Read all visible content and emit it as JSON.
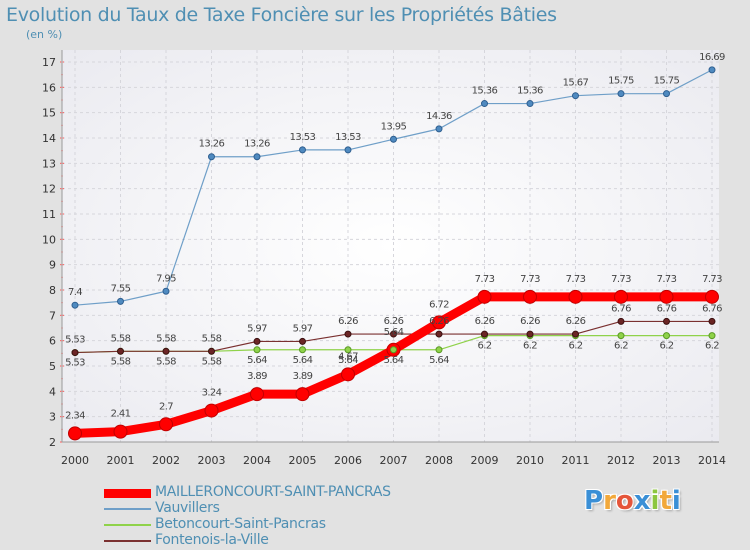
{
  "title": "Evolution du Taux de Taxe Foncière sur les Propriétés Bâties",
  "unit": "(en %)",
  "logo": {
    "text": "Proxiti",
    "letters": [
      {
        "ch": "P",
        "color": "#3a8fd6"
      },
      {
        "ch": "r",
        "color": "#f2a83a"
      },
      {
        "ch": "o",
        "color": "#e5553a"
      },
      {
        "ch": "x",
        "color": "#3a8fd6"
      },
      {
        "ch": "i",
        "color": "#8cc63f"
      },
      {
        "ch": "t",
        "color": "#f2a83a"
      },
      {
        "ch": "i",
        "color": "#3a8fd6"
      }
    ]
  },
  "chart_data": {
    "type": "line",
    "title": "Evolution du Taux de Taxe Foncière sur les Propriétés Bâties",
    "ylabel": "(en %)",
    "xlabel": "",
    "ylim": [
      2,
      17
    ],
    "y_ticks": [
      2,
      3,
      4,
      5,
      6,
      7,
      8,
      9,
      10,
      11,
      12,
      13,
      14,
      15,
      16,
      17
    ],
    "x": [
      "2000",
      "2001",
      "2002",
      "2003",
      "2004",
      "2005",
      "2006",
      "2007",
      "2008",
      "2009",
      "2010",
      "2011",
      "2012",
      "2013",
      "2014"
    ],
    "grid": true,
    "legend_position": "bottom-left",
    "series": [
      {
        "name": "Vauvillers",
        "color": "#6f9fc8",
        "values": [
          7.4,
          7.55,
          7.95,
          13.26,
          13.26,
          13.53,
          13.53,
          13.95,
          14.36,
          15.36,
          15.36,
          15.67,
          15.75,
          15.75,
          16.69
        ],
        "labels": [
          "7.4",
          "7.55",
          "7.95",
          "13.26",
          "13.26",
          "13.53",
          "13.53",
          "13.95",
          "14.36",
          "15.36",
          "15.36",
          "15.67",
          "15.75",
          "15.75",
          "16.69"
        ]
      },
      {
        "name": "Betoncourt-Saint-Pancras",
        "color": "#8fd24a",
        "values": [
          5.53,
          5.58,
          5.58,
          5.58,
          5.64,
          5.64,
          5.64,
          5.64,
          5.64,
          6.2,
          6.2,
          6.2,
          6.2,
          6.2,
          6.2
        ],
        "labels": [
          "5.53",
          "5.58",
          "5.58",
          "5.58",
          "5.64",
          "5.64",
          "5.64",
          "5.64",
          "5.64",
          "6.2",
          "6.2",
          "6.2",
          "6.2",
          "6.2",
          "6.2"
        ]
      },
      {
        "name": "Fontenois-la-Ville",
        "color": "#7a3030",
        "values": [
          5.53,
          5.58,
          5.58,
          5.58,
          5.97,
          5.97,
          6.26,
          6.26,
          6.26,
          6.26,
          6.26,
          6.26,
          6.76,
          6.76,
          6.76
        ],
        "labels": [
          "5.53",
          "5.58",
          "5.58",
          "5.58",
          "5.97",
          "5.97",
          "6.26",
          "6.26",
          "6.26",
          "6.26",
          "6.26",
          "6.26",
          "6.76",
          "6.76",
          "6.76"
        ]
      },
      {
        "name": "MAILLERONCOURT-SAINT-PANCRAS",
        "color": "#ff0000",
        "values": [
          2.34,
          2.41,
          2.7,
          3.24,
          3.89,
          3.89,
          4.67,
          5.64,
          6.72,
          7.73,
          7.73,
          7.73,
          7.73,
          7.73,
          7.73
        ],
        "labels": [
          "2.34",
          "2.41",
          "2.7",
          "3.24",
          "3.89",
          "3.89",
          "4.67",
          "5.64",
          "6.72",
          "7.73",
          "7.73",
          "7.73",
          "7.73",
          "7.73",
          "7.73"
        ]
      }
    ]
  }
}
